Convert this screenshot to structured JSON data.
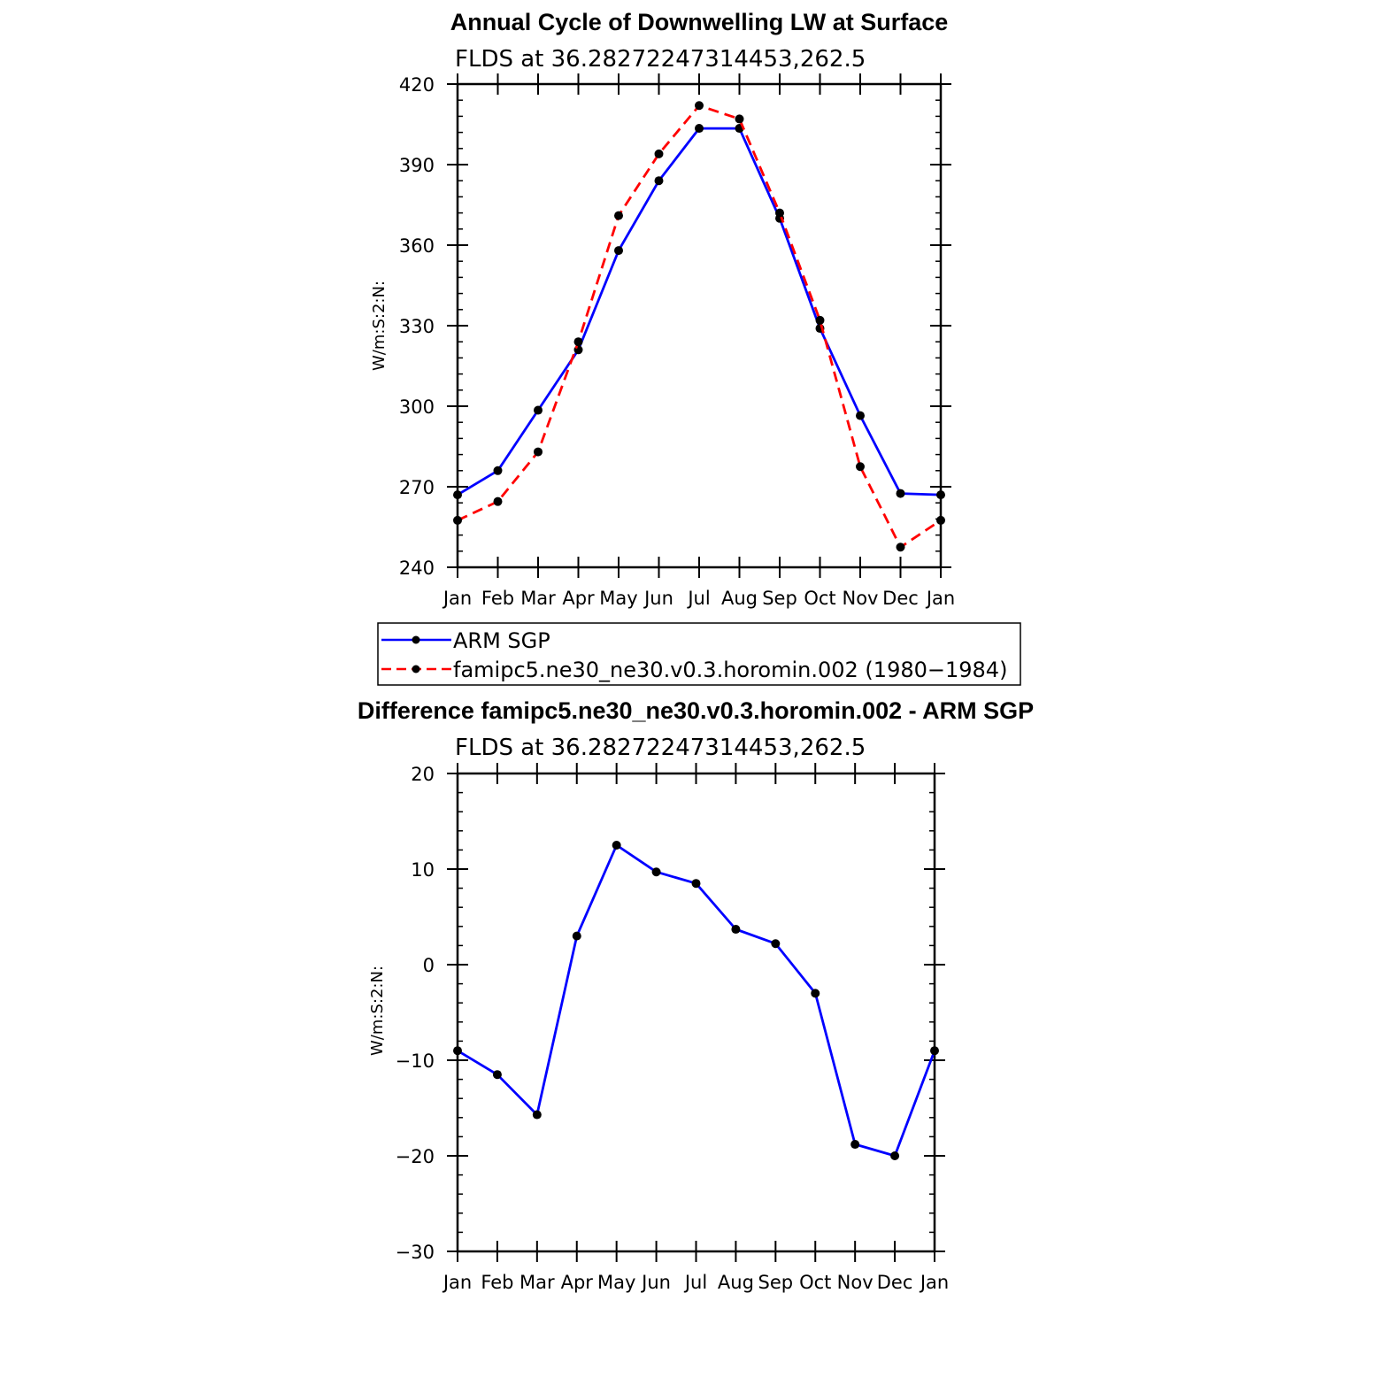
{
  "chart_data": [
    {
      "type": "line",
      "title": "Annual Cycle of Downwelling LW at Surface",
      "subtitle": "FLDS at 36.28272247314453,262.5",
      "ylabel": "W/m:S:2:N:",
      "categories": [
        "Jan",
        "Feb",
        "Mar",
        "Apr",
        "May",
        "Jun",
        "Jul",
        "Aug",
        "Sep",
        "Oct",
        "Nov",
        "Dec",
        "Jan"
      ],
      "ylim": [
        240,
        420
      ],
      "yticks": [
        240,
        270,
        300,
        330,
        360,
        390,
        420
      ],
      "series": [
        {
          "name": "ARM SGP",
          "color": "#0000ff",
          "dash": false,
          "values": [
            267,
            276,
            298.5,
            321,
            358,
            384,
            403.5,
            403.5,
            370,
            329,
            296.5,
            267.5,
            267
          ]
        },
        {
          "name": "famipc5.ne30_ne30.v0.3.horomin.002 (1980−1984)",
          "color": "#ff0000",
          "dash": true,
          "values": [
            257.5,
            264.5,
            283,
            324,
            371,
            394,
            412,
            407,
            372,
            332,
            277.5,
            247.5,
            257.5
          ]
        }
      ],
      "legend": "below"
    },
    {
      "type": "line",
      "title": "Difference famipc5.ne30_ne30.v0.3.horomin.002 - ARM SGP",
      "subtitle": "FLDS at 36.28272247314453,262.5",
      "ylabel": "W/m:S:2:N:",
      "categories": [
        "Jan",
        "Feb",
        "Mar",
        "Apr",
        "May",
        "Jun",
        "Jul",
        "Aug",
        "Sep",
        "Oct",
        "Nov",
        "Dec",
        "Jan"
      ],
      "ylim": [
        -30,
        20
      ],
      "yticks": [
        -30,
        -20,
        -10,
        0,
        10,
        20
      ],
      "ytick_labels": [
        "−30",
        "−20",
        "−10",
        "0",
        "10",
        "20"
      ],
      "series": [
        {
          "color": "#0000ff",
          "dash": false,
          "values": [
            -9,
            -11.5,
            -15.7,
            3,
            12.5,
            9.7,
            8.5,
            3.7,
            2.2,
            -3,
            -18.8,
            -20,
            -9
          ]
        }
      ]
    }
  ]
}
